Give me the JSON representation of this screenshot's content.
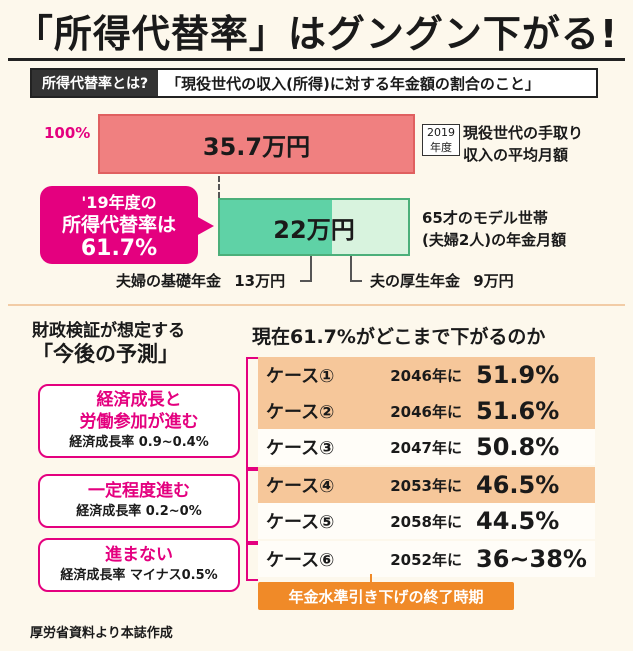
{
  "header": {
    "title": "「所得代替率」はグングン下がる!"
  },
  "definition": {
    "label": "所得代替率とは?",
    "text": "「現役世代の収入(所得)に対する年金額の割合のこと」"
  },
  "chart_data": {
    "type": "bar",
    "bars": [
      {
        "name": "現役世代の手取り収入の平均月額",
        "value_label": "35.7万円",
        "value": 35.7,
        "percent_label": "100%",
        "year_tag": [
          "2019",
          "年度"
        ],
        "description": [
          "現役世代の手取り",
          "収入の平均月額"
        ]
      },
      {
        "name": "65才のモデル世帯(夫婦2人)の年金月額",
        "value_label": "22万円",
        "value": 22,
        "description": [
          "65才のモデル世帯",
          "(夫婦2人)の年金月額"
        ],
        "segments": [
          {
            "label": "夫婦の基礎年金",
            "amount": "13万円",
            "value": 13,
            "color": "#5fd2a6"
          },
          {
            "label": "夫の厚生年金",
            "amount": "9万円",
            "value": 9,
            "color": "#d8f3de"
          }
        ]
      }
    ],
    "replacement_rate_callout": [
      "'19年度の",
      "所得代替率は",
      "61.7%"
    ]
  },
  "forecast": {
    "heading_line1": "財政検証が想定する",
    "heading_line2": "「今後の予測」",
    "question": "現在61.7%がどこまで下がるのか",
    "rows": [
      {
        "case": "ケース①",
        "year": "2046年に",
        "rate": "51.9%",
        "color": "orange"
      },
      {
        "case": "ケース②",
        "year": "2046年に",
        "rate": "51.6%",
        "color": "orange"
      },
      {
        "case": "ケース③",
        "year": "2047年に",
        "rate": "50.8%",
        "color": "white"
      },
      {
        "case": "ケース④",
        "year": "2053年に",
        "rate": "46.5%",
        "color": "orange"
      },
      {
        "case": "ケース⑤",
        "year": "2058年に",
        "rate": "44.5%",
        "color": "white"
      },
      {
        "case": "ケース⑥",
        "year": "2052年に",
        "rate": "36~38%",
        "color": "white"
      }
    ],
    "groups": [
      {
        "main": [
          "経済成長と",
          "労働参加が進む"
        ],
        "sub": "経済成長率 0.9~0.4%"
      },
      {
        "main": [
          "一定程度進む"
        ],
        "sub": "経済成長率 0.2~0%"
      },
      {
        "main": [
          "進まない"
        ],
        "sub": "経済成長率 マイナス0.5%"
      }
    ],
    "end_label": "年金水準引き下げの終了時期"
  },
  "source": "厚労省資料より本誌作成",
  "colors": {
    "accent": "#e4007f",
    "income_bar": "#f08080",
    "orange_row": "#f6c79a",
    "end_label": "#f08a28"
  }
}
